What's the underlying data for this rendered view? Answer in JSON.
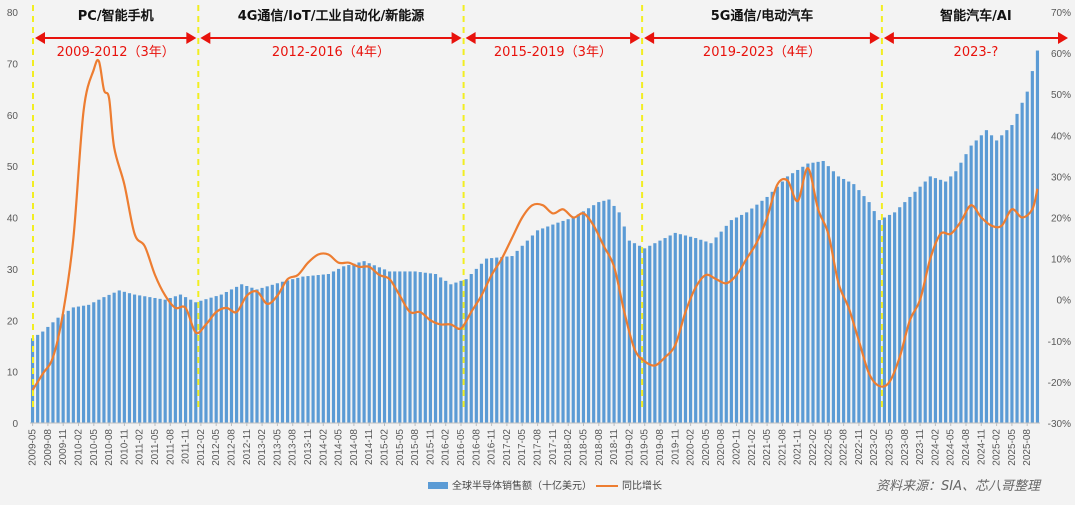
{
  "chart_data": {
    "type": "bar+line",
    "x_start": "2009-05",
    "x_end": "2025-10",
    "x_tick_labels": [
      "2009-05",
      "2009-08",
      "2009-11",
      "2010-02",
      "2010-05",
      "2010-08",
      "2010-11",
      "2011-02",
      "2011-05",
      "2011-08",
      "2011-11",
      "2012-02",
      "2012-05",
      "2012-08",
      "2012-11",
      "2013-02",
      "2013-05",
      "2013-08",
      "2013-11",
      "2014-02",
      "2014-05",
      "2014-08",
      "2014-11",
      "2015-02",
      "2015-05",
      "2015-08",
      "2015-11",
      "2016-02",
      "2016-05",
      "2016-08",
      "2016-11",
      "2017-02",
      "2017-05",
      "2017-08",
      "2017-11",
      "2018-02",
      "2018-05",
      "2018-08",
      "2018-11",
      "2019-02",
      "2019-05",
      "2019-08",
      "2019-11",
      "2020-02",
      "2020-05",
      "2020-08",
      "2020-11",
      "2021-02",
      "2021-05",
      "2021-08",
      "2021-11",
      "2022-02",
      "2022-05",
      "2022-08",
      "2022-11",
      "2023-02",
      "2023-05",
      "2023-08",
      "2023-11",
      "2024-02",
      "2024-05",
      "2024-08",
      "2024-11",
      "2025-02",
      "2025-05",
      "2025-08"
    ],
    "y_left": {
      "min": 0,
      "max": 80,
      "ticks": [
        0,
        10,
        20,
        30,
        40,
        50,
        60,
        70,
        80
      ]
    },
    "y_right": {
      "min": -30,
      "max": 70,
      "ticks": [
        "-30%",
        "-20%",
        "-10%",
        "0%",
        "10%",
        "20%",
        "30%",
        "40%",
        "50%",
        "60%",
        "70%"
      ]
    },
    "series": [
      {
        "name": "全球半导体销售额（十亿美元）",
        "type": "bar",
        "axis": "left",
        "color": "#5b9bd5",
        "anchors": [
          [
            "2009-05",
            16.5
          ],
          [
            "2009-07",
            17.8
          ],
          [
            "2009-10",
            20.5
          ],
          [
            "2010-01",
            22.5
          ],
          [
            "2010-04",
            23.0
          ],
          [
            "2010-07",
            24.5
          ],
          [
            "2010-10",
            25.8
          ],
          [
            "2011-01",
            25.0
          ],
          [
            "2011-04",
            24.5
          ],
          [
            "2011-07",
            24.0
          ],
          [
            "2011-10",
            25.0
          ],
          [
            "2012-01",
            23.5
          ],
          [
            "2012-06",
            25.0
          ],
          [
            "2012-10",
            27.0
          ],
          [
            "2013-01",
            26.0
          ],
          [
            "2013-06",
            27.5
          ],
          [
            "2013-10",
            28.5
          ],
          [
            "2014-03",
            29.0
          ],
          [
            "2014-06",
            30.5
          ],
          [
            "2014-10",
            31.5
          ],
          [
            "2015-03",
            29.5
          ],
          [
            "2015-08",
            29.5
          ],
          [
            "2015-12",
            29.0
          ],
          [
            "2016-03",
            27.0
          ],
          [
            "2016-06",
            28.0
          ],
          [
            "2016-10",
            32.0
          ],
          [
            "2017-03",
            32.5
          ],
          [
            "2017-08",
            37.5
          ],
          [
            "2017-12",
            39.0
          ],
          [
            "2018-03",
            40.0
          ],
          [
            "2018-08",
            43.0
          ],
          [
            "2018-10",
            43.5
          ],
          [
            "2018-12",
            41.0
          ],
          [
            "2019-02",
            35.5
          ],
          [
            "2019-05",
            34.0
          ],
          [
            "2019-08",
            35.5
          ],
          [
            "2019-11",
            37.0
          ],
          [
            "2020-03",
            36.0
          ],
          [
            "2020-06",
            35.0
          ],
          [
            "2020-10",
            39.5
          ],
          [
            "2021-01",
            41.0
          ],
          [
            "2021-05",
            44.0
          ],
          [
            "2021-09",
            48.0
          ],
          [
            "2022-01",
            50.5
          ],
          [
            "2022-04",
            51.0
          ],
          [
            "2022-07",
            48.0
          ],
          [
            "2022-10",
            46.5
          ],
          [
            "2023-01",
            43.0
          ],
          [
            "2023-03",
            39.5
          ],
          [
            "2023-06",
            41.0
          ],
          [
            "2023-10",
            45.0
          ],
          [
            "2024-01",
            48.0
          ],
          [
            "2024-04",
            47.0
          ],
          [
            "2024-06",
            49.0
          ],
          [
            "2024-09",
            54.0
          ],
          [
            "2024-12",
            57.0
          ],
          [
            "2025-02",
            55.0
          ],
          [
            "2025-05",
            58.0
          ],
          [
            "2025-08",
            64.5
          ],
          [
            "2025-10",
            72.5
          ]
        ]
      },
      {
        "name": "同比增长",
        "type": "line",
        "axis": "right",
        "color": "#ed7d31",
        "unit": "%",
        "points": [
          [
            "2009-05",
            -22
          ],
          [
            "2009-07",
            -18
          ],
          [
            "2009-09",
            -14
          ],
          [
            "2009-11",
            -3
          ],
          [
            "2010-01",
            15
          ],
          [
            "2010-03",
            46
          ],
          [
            "2010-05",
            56
          ],
          [
            "2010-06",
            58
          ],
          [
            "2010-07",
            51
          ],
          [
            "2010-08",
            49
          ],
          [
            "2010-09",
            37
          ],
          [
            "2010-11",
            28
          ],
          [
            "2011-01",
            16
          ],
          [
            "2011-03",
            13
          ],
          [
            "2011-05",
            6
          ],
          [
            "2011-07",
            1
          ],
          [
            "2011-09",
            -2
          ],
          [
            "2011-11",
            -2
          ],
          [
            "2012-01",
            -8
          ],
          [
            "2012-03",
            -6
          ],
          [
            "2012-05",
            -3
          ],
          [
            "2012-07",
            -2
          ],
          [
            "2012-09",
            -3
          ],
          [
            "2012-11",
            1
          ],
          [
            "2013-01",
            2
          ],
          [
            "2013-03",
            -1
          ],
          [
            "2013-05",
            1
          ],
          [
            "2013-07",
            5
          ],
          [
            "2013-09",
            6
          ],
          [
            "2013-11",
            9
          ],
          [
            "2014-01",
            11
          ],
          [
            "2014-03",
            11
          ],
          [
            "2014-05",
            9
          ],
          [
            "2014-07",
            9
          ],
          [
            "2014-09",
            8
          ],
          [
            "2014-11",
            8
          ],
          [
            "2015-01",
            6
          ],
          [
            "2015-03",
            5
          ],
          [
            "2015-05",
            1
          ],
          [
            "2015-07",
            -3
          ],
          [
            "2015-09",
            -3
          ],
          [
            "2015-11",
            -5
          ],
          [
            "2016-01",
            -6
          ],
          [
            "2016-03",
            -6
          ],
          [
            "2016-05",
            -7
          ],
          [
            "2016-07",
            -3
          ],
          [
            "2016-09",
            1
          ],
          [
            "2016-11",
            6
          ],
          [
            "2017-01",
            10
          ],
          [
            "2017-03",
            15
          ],
          [
            "2017-05",
            20
          ],
          [
            "2017-07",
            23
          ],
          [
            "2017-09",
            23
          ],
          [
            "2017-11",
            21
          ],
          [
            "2018-01",
            22
          ],
          [
            "2018-03",
            20
          ],
          [
            "2018-05",
            21
          ],
          [
            "2018-07",
            18
          ],
          [
            "2018-09",
            13
          ],
          [
            "2018-11",
            8
          ],
          [
            "2019-01",
            -3
          ],
          [
            "2019-03",
            -12
          ],
          [
            "2019-05",
            -15
          ],
          [
            "2019-07",
            -16
          ],
          [
            "2019-09",
            -14
          ],
          [
            "2019-11",
            -11
          ],
          [
            "2020-01",
            -3
          ],
          [
            "2020-03",
            3
          ],
          [
            "2020-05",
            6
          ],
          [
            "2020-07",
            5
          ],
          [
            "2020-09",
            4
          ],
          [
            "2020-11",
            6
          ],
          [
            "2021-01",
            10
          ],
          [
            "2021-03",
            14
          ],
          [
            "2021-05",
            20
          ],
          [
            "2021-07",
            28
          ],
          [
            "2021-09",
            29
          ],
          [
            "2021-11",
            24
          ],
          [
            "2022-01",
            32
          ],
          [
            "2022-03",
            22
          ],
          [
            "2022-05",
            16
          ],
          [
            "2022-07",
            4
          ],
          [
            "2022-09",
            -2
          ],
          [
            "2022-11",
            -10
          ],
          [
            "2023-01",
            -18
          ],
          [
            "2023-03",
            -21
          ],
          [
            "2023-05",
            -20
          ],
          [
            "2023-07",
            -14
          ],
          [
            "2023-09",
            -5
          ],
          [
            "2023-11",
            0
          ],
          [
            "2024-01",
            10
          ],
          [
            "2024-03",
            16
          ],
          [
            "2024-05",
            16
          ],
          [
            "2024-07",
            19
          ],
          [
            "2024-09",
            23
          ],
          [
            "2024-11",
            20
          ],
          [
            "2025-01",
            18
          ],
          [
            "2025-03",
            18
          ],
          [
            "2025-05",
            22
          ],
          [
            "2025-07",
            20
          ],
          [
            "2025-09",
            22
          ],
          [
            "2025-10",
            27
          ]
        ]
      }
    ],
    "eras": [
      {
        "label": "PC/智能手机",
        "period": "2009-2012（3年）",
        "from": "2009-05",
        "to": "2012-02"
      },
      {
        "label": "4G通信/IoT/工业自动化/新能源",
        "period": "2012-2016（4年）",
        "from": "2012-02",
        "to": "2016-06"
      },
      {
        "label": "",
        "period": "2015-2019（3年）",
        "from": "2016-06",
        "to": "2019-05"
      },
      {
        "label": "5G通信/电动汽车",
        "period": "2019-2023（4年）",
        "from": "2019-05",
        "to": "2023-04"
      },
      {
        "label": "智能汽车/AI",
        "period": "2023-?",
        "from": "2023-04",
        "to": "2025-10"
      }
    ],
    "source_note": "资料来源：SIA、芯八哥整理",
    "grid": false,
    "legend": "bottom-center"
  }
}
